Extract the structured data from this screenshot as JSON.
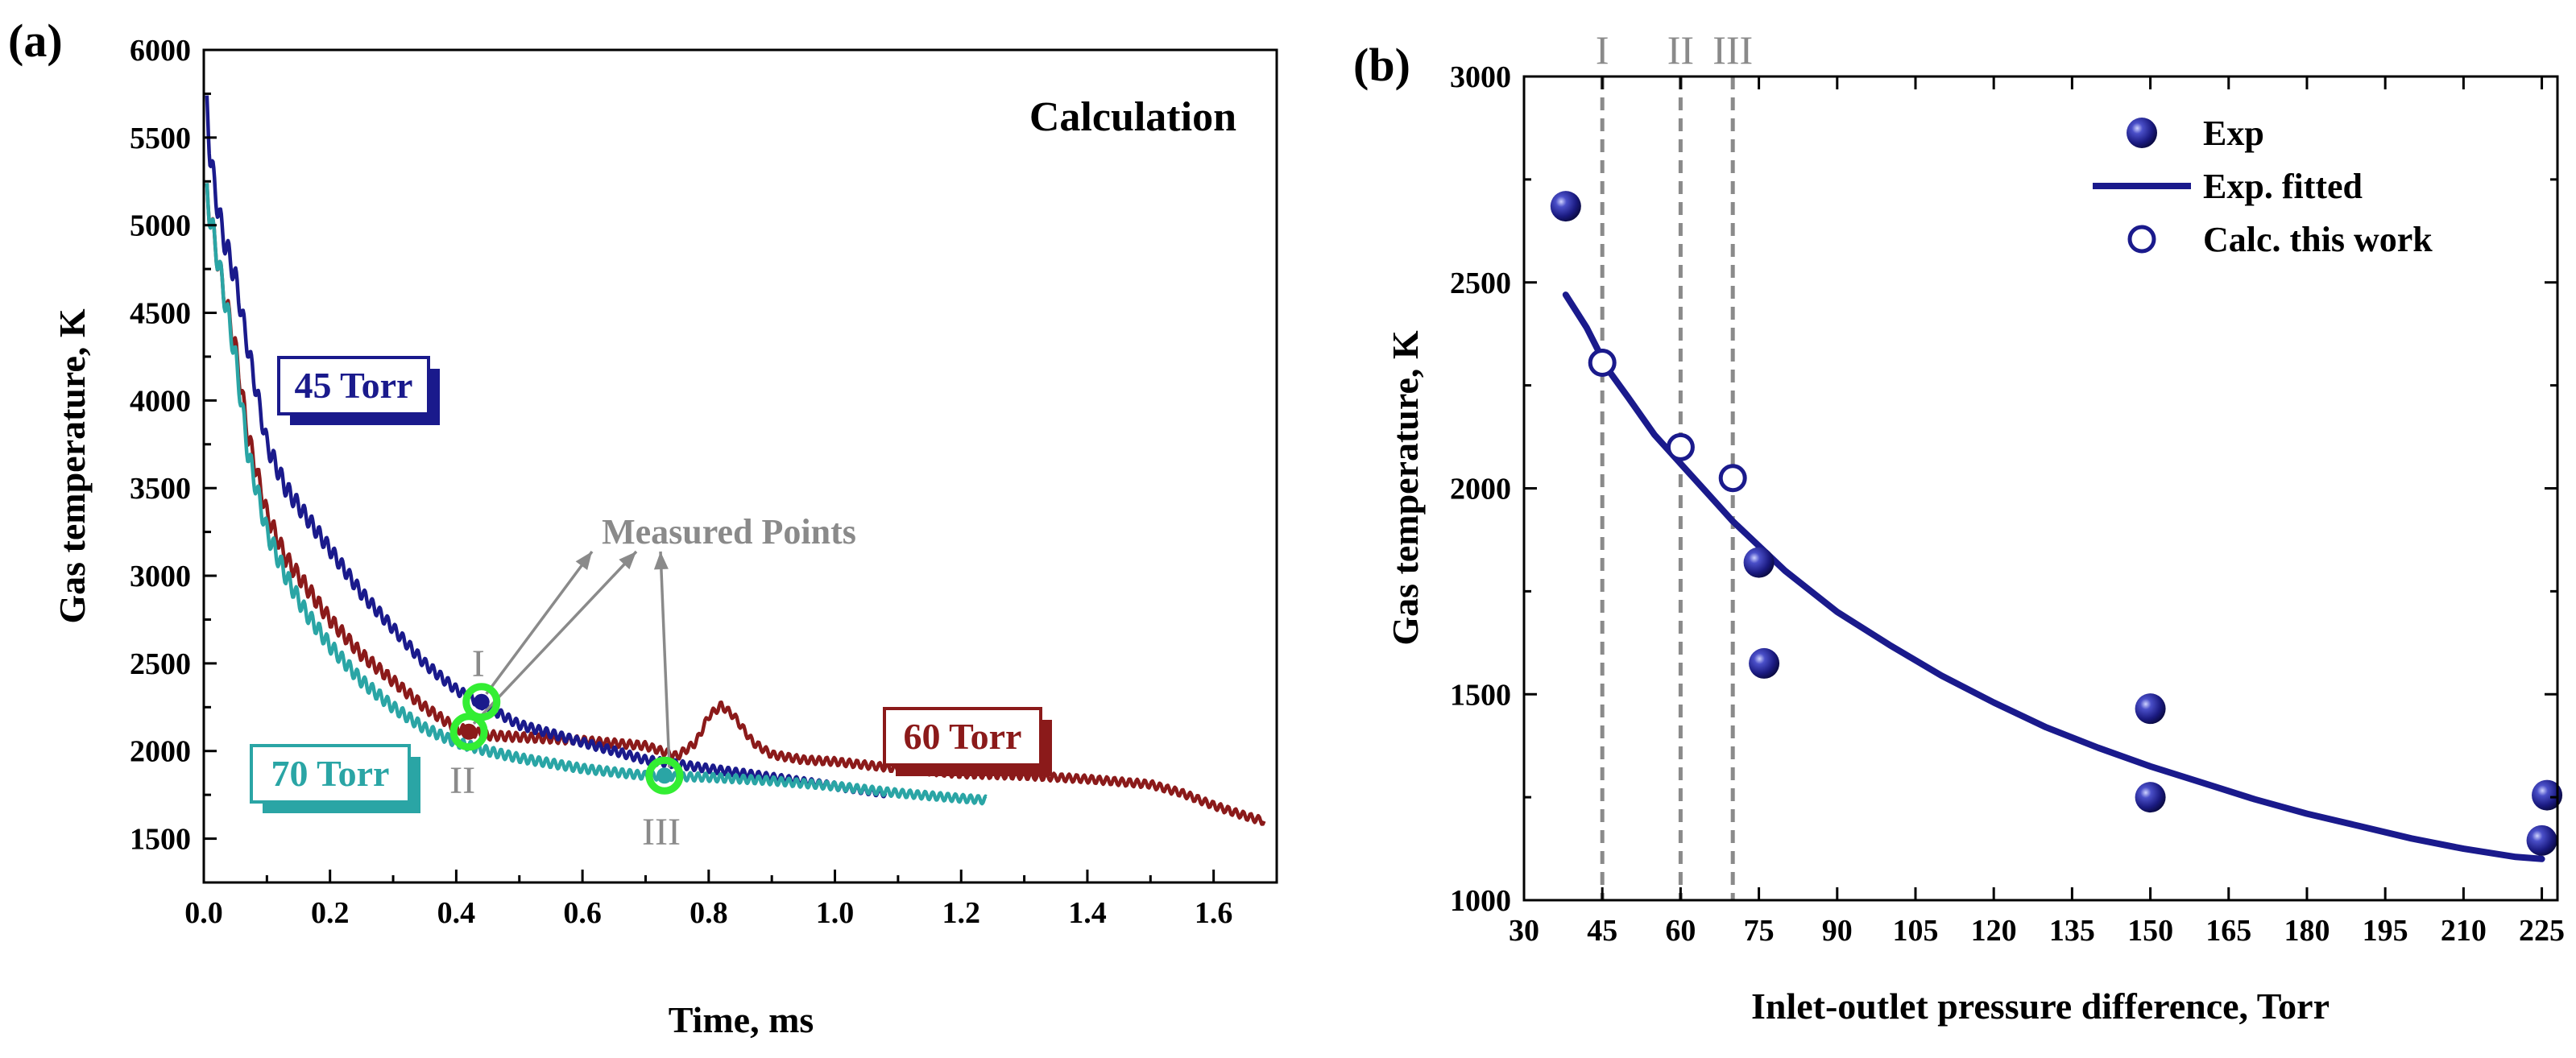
{
  "chart_data": [
    {
      "type": "line",
      "panel_label": "(a)",
      "title": "Calculation",
      "xlabel": "Time, ms",
      "ylabel": "Gas temperature, K",
      "xlim": [
        0.0,
        1.7
      ],
      "ylim": [
        1250,
        6000
      ],
      "xticks": [
        "0.0",
        "0.2",
        "0.4",
        "0.6",
        "0.8",
        "1.0",
        "1.2",
        "1.4",
        "1.6"
      ],
      "yticks": [
        "1500",
        "2000",
        "2500",
        "3000",
        "3500",
        "4000",
        "4500",
        "5000",
        "5500",
        "6000"
      ],
      "series": [
        {
          "name": "45 Torr",
          "color": "#1a1a8c",
          "x": [
            0.005,
            0.01,
            0.02,
            0.03,
            0.05,
            0.07,
            0.1,
            0.13,
            0.16,
            0.2,
            0.25,
            0.3,
            0.35,
            0.4,
            0.45,
            0.5,
            0.6,
            0.7,
            0.8,
            0.9,
            1.0,
            1.08
          ],
          "y": [
            5700,
            5400,
            5150,
            4950,
            4700,
            4300,
            3750,
            3500,
            3350,
            3150,
            2900,
            2700,
            2500,
            2350,
            2250,
            2150,
            2050,
            1950,
            1900,
            1850,
            1800,
            1760
          ]
        },
        {
          "name": "60 Torr",
          "color": "#8b1a1a",
          "x": [
            0.005,
            0.01,
            0.02,
            0.03,
            0.05,
            0.07,
            0.1,
            0.13,
            0.16,
            0.2,
            0.25,
            0.3,
            0.35,
            0.4,
            0.45,
            0.5,
            0.6,
            0.7,
            0.75,
            0.78,
            0.8,
            0.82,
            0.84,
            0.87,
            0.9,
            0.95,
            1.0,
            1.1,
            1.2,
            1.3,
            1.4,
            1.5,
            1.55,
            1.6,
            1.65,
            1.68
          ],
          "y": [
            5200,
            5050,
            4850,
            4650,
            4300,
            3800,
            3350,
            3100,
            2950,
            2750,
            2550,
            2400,
            2250,
            2130,
            2090,
            2080,
            2060,
            2030,
            1970,
            2050,
            2200,
            2260,
            2200,
            2050,
            1980,
            1950,
            1940,
            1900,
            1870,
            1860,
            1840,
            1810,
            1760,
            1690,
            1630,
            1600
          ]
        },
        {
          "name": "70 Torr",
          "color": "#2aa5a5",
          "x": [
            0.005,
            0.01,
            0.02,
            0.03,
            0.05,
            0.07,
            0.1,
            0.13,
            0.16,
            0.2,
            0.25,
            0.3,
            0.35,
            0.4,
            0.45,
            0.5,
            0.6,
            0.7,
            0.8,
            0.9,
            1.0,
            1.1,
            1.2,
            1.24
          ],
          "y": [
            5200,
            5050,
            4850,
            4650,
            4250,
            3700,
            3250,
            3000,
            2800,
            2600,
            2400,
            2250,
            2130,
            2050,
            2000,
            1960,
            1900,
            1860,
            1850,
            1830,
            1800,
            1760,
            1730,
            1720
          ]
        }
      ],
      "measured_points": {
        "label": "Measured Points",
        "color": "#33ee33",
        "points": [
          {
            "label": "I",
            "x": 0.44,
            "y": 2280,
            "series": "45 Torr"
          },
          {
            "label": "II",
            "x": 0.42,
            "y": 2110,
            "series": "60 Torr"
          },
          {
            "label": "III",
            "x": 0.73,
            "y": 1860,
            "series": "70 Torr"
          }
        ]
      },
      "series_labels": [
        {
          "text": "45 Torr",
          "color": "#1a1a8c"
        },
        {
          "text": "60 Torr",
          "color": "#8b1a1a"
        },
        {
          "text": "70 Torr",
          "color": "#2aa5a5"
        }
      ]
    },
    {
      "type": "scatter",
      "panel_label": "(b)",
      "xlabel": "Inlet-outlet pressure difference, Torr",
      "ylabel": "Gas temperature, K",
      "xlim": [
        30,
        228
      ],
      "ylim": [
        1000,
        3000
      ],
      "xticks": [
        "30",
        "45",
        "60",
        "75",
        "90",
        "105",
        "120",
        "135",
        "150",
        "165",
        "180",
        "195",
        "210",
        "225"
      ],
      "yticks": [
        "1000",
        "1500",
        "2000",
        "2500",
        "3000"
      ],
      "legend": {
        "position": "top-right",
        "entries": [
          {
            "label": "Exp",
            "marker": "filled-sphere"
          },
          {
            "label": "Exp. fitted",
            "marker": "line"
          },
          {
            "label": "Calc. this work",
            "marker": "open-circle"
          }
        ]
      },
      "color": "#1a1a8c",
      "exp": {
        "x": [
          38,
          75,
          76,
          150,
          150,
          225,
          226
        ],
        "y": [
          2685,
          1820,
          1575,
          1465,
          1250,
          1145,
          1255
        ]
      },
      "exp_fitted": {
        "x": [
          38,
          42,
          46,
          50,
          55,
          60,
          65,
          70,
          80,
          90,
          100,
          110,
          120,
          130,
          140,
          150,
          160,
          170,
          180,
          190,
          200,
          210,
          220,
          225
        ],
        "y": [
          2470,
          2390,
          2290,
          2220,
          2130,
          2060,
          1990,
          1920,
          1800,
          1700,
          1620,
          1545,
          1480,
          1420,
          1370,
          1325,
          1285,
          1245,
          1210,
          1180,
          1150,
          1125,
          1105,
          1100
        ]
      },
      "calc": {
        "x": [
          45,
          60,
          70
        ],
        "y": [
          2305,
          2100,
          2025
        ]
      },
      "vlines": [
        {
          "label": "I",
          "x": 45
        },
        {
          "label": "II",
          "x": 60
        },
        {
          "label": "III",
          "x": 70
        }
      ]
    }
  ]
}
